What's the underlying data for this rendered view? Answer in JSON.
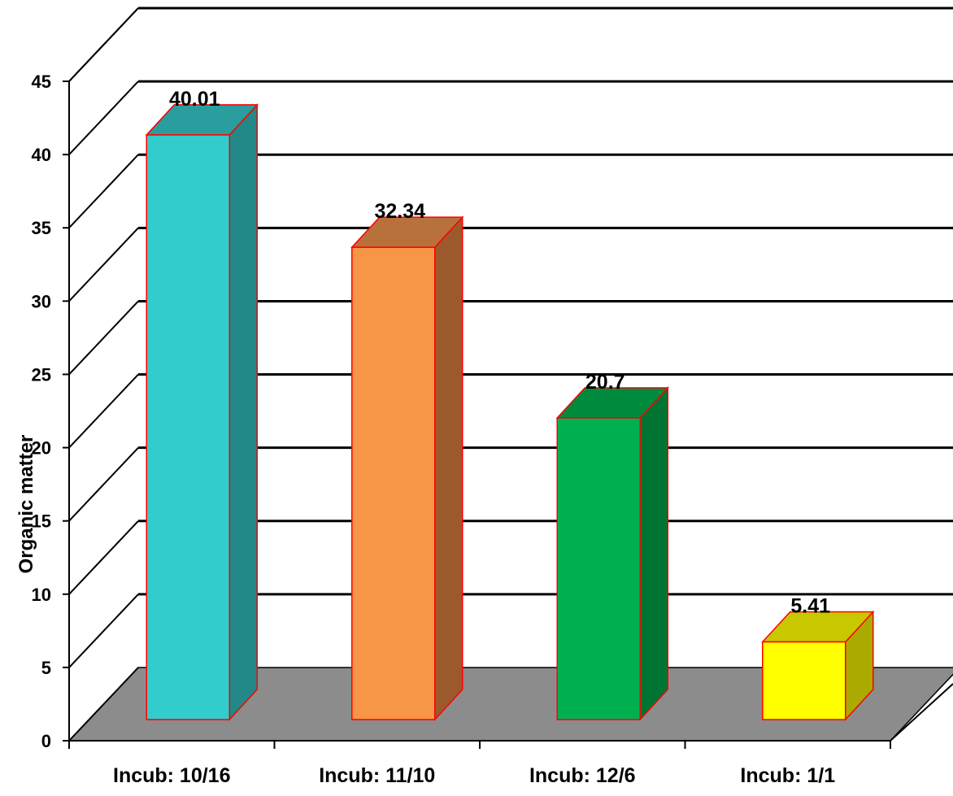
{
  "chart_data": {
    "type": "bar",
    "style": "3d-column",
    "title": "",
    "xlabel": "",
    "ylabel": "Organic matter",
    "ylim": [
      0,
      45
    ],
    "yticks": [
      0,
      5,
      10,
      15,
      20,
      25,
      30,
      35,
      40,
      45
    ],
    "grid": true,
    "categories": [
      "Incub: 10/16",
      "Incub: 11/10",
      "Incub: 12/6",
      "Incub: 1/1"
    ],
    "values": [
      40.01,
      32.34,
      20.7,
      5.41
    ],
    "data_labels": [
      "40.01",
      "32.34",
      "20.7",
      "5.41"
    ],
    "bar_colors": [
      "#33CCCC",
      "#F79646",
      "#00B050",
      "#FFFF00"
    ],
    "bar_side_colors": [
      "#228888",
      "#9C5A2C",
      "#007533",
      "#AAAA00"
    ],
    "bar_top_colors": [
      "#2A9E9E",
      "#B8713A",
      "#008A3E",
      "#C8C800"
    ],
    "bar_outline_color": "#FF0000",
    "floor_color": "#8C8C8C",
    "gridline_color": "#000000"
  }
}
